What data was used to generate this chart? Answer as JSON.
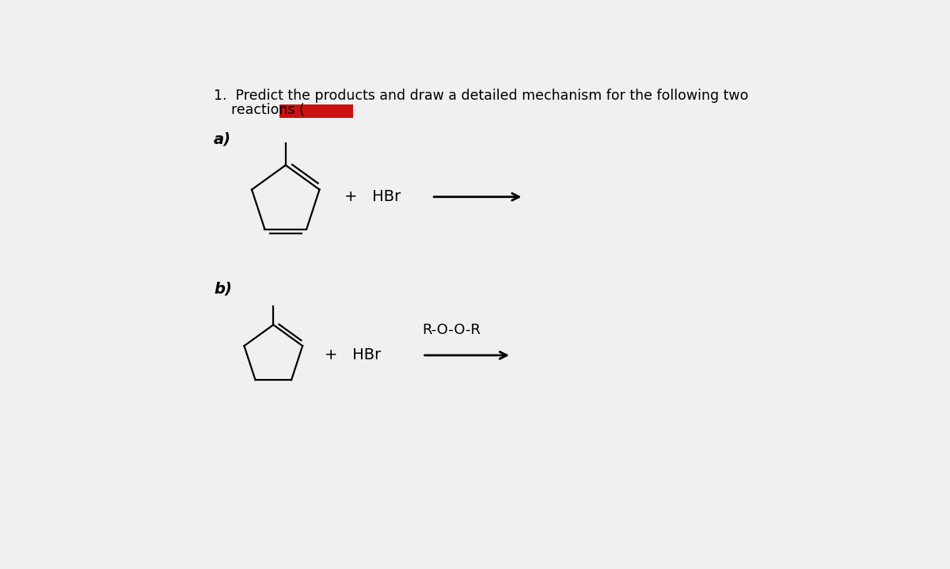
{
  "title_line1": "1.  Predict the products and draw a detailed mechanism for the following two",
  "title_line2": "    reactions (",
  "label_a": "a)",
  "label_b": "b)",
  "plus_a": "+   HBr",
  "plus_b": "+   HBr",
  "roor": "R-O-O-R",
  "bg_color": "#f0f0f0",
  "text_color": "#000000",
  "red_color": "#cc1111",
  "line_color": "#000000",
  "title_fontsize": 12.5,
  "label_fontsize": 13,
  "mol_fontsize": 13,
  "arrow_color": "#000000",
  "lw": 1.6
}
